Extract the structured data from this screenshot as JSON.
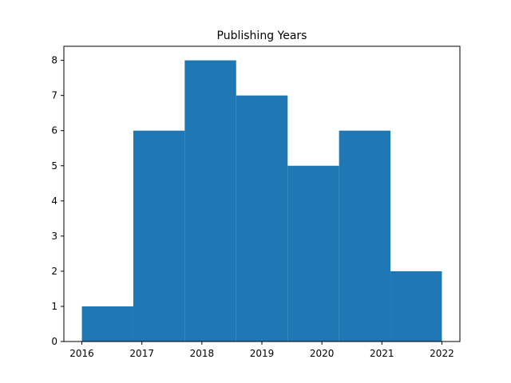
{
  "chart_data": {
    "type": "bar",
    "title": "Publishing Years",
    "xlabel": "",
    "ylabel": "",
    "bins": [
      {
        "start": 2016.0,
        "end": 2016.857,
        "value": 1
      },
      {
        "start": 2016.857,
        "end": 2017.714,
        "value": 6
      },
      {
        "start": 2017.714,
        "end": 2018.571,
        "value": 8
      },
      {
        "start": 2018.571,
        "end": 2019.429,
        "value": 7
      },
      {
        "start": 2019.429,
        "end": 2020.286,
        "value": 5
      },
      {
        "start": 2020.286,
        "end": 2021.143,
        "value": 6
      },
      {
        "start": 2021.143,
        "end": 2022.0,
        "value": 2
      }
    ],
    "xlim": [
      2015.7,
      2022.3
    ],
    "ylim": [
      0,
      8.4
    ],
    "xticks": [
      "2016",
      "2017",
      "2018",
      "2019",
      "2020",
      "2021",
      "2022"
    ],
    "yticks": [
      "0",
      "1",
      "2",
      "3",
      "4",
      "5",
      "6",
      "7",
      "8"
    ],
    "bar_color": "#1f77b4",
    "grid": false
  }
}
